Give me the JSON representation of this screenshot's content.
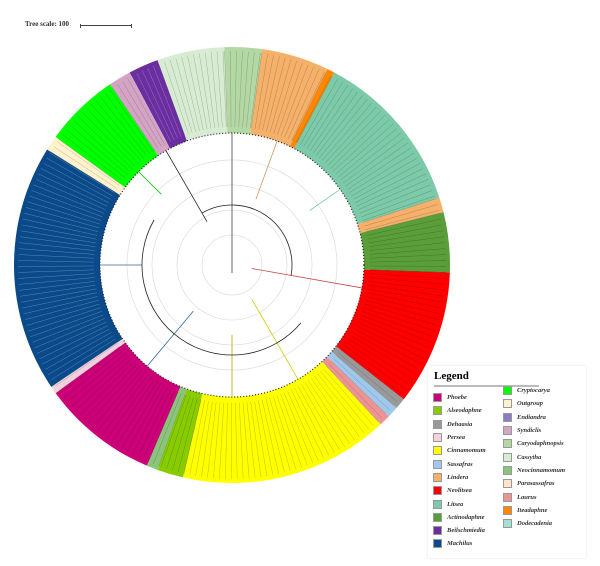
{
  "tree_scale": {
    "label": "Tree scale: 100"
  },
  "legend": {
    "title": "Legend",
    "items": [
      {
        "name": "Phoebe",
        "color": "#cc0077"
      },
      {
        "name": "Alseodaphne",
        "color": "#88cc00"
      },
      {
        "name": "Dehaasia",
        "color": "#999999"
      },
      {
        "name": "Persea",
        "color": "#f2d0dc"
      },
      {
        "name": "Cinnamomum",
        "color": "#ffff00"
      },
      {
        "name": "Sassafras",
        "color": "#a0c8ec"
      },
      {
        "name": "Lindera",
        "color": "#f5b06a"
      },
      {
        "name": "Neolitsea",
        "color": "#ff0000"
      },
      {
        "name": "Litsea",
        "color": "#7ccaa8"
      },
      {
        "name": "Actinodaphne",
        "color": "#5a9e3a"
      },
      {
        "name": "Beilschmiedia",
        "color": "#6a2ea0"
      },
      {
        "name": "Machilus",
        "color": "#0a4a8a"
      },
      {
        "name": "Cryptocarya",
        "color": "#00ff00"
      },
      {
        "name": "Outgroup",
        "color": "#fff2cc"
      },
      {
        "name": "Endiandra",
        "color": "#8c7cc8"
      },
      {
        "name": "Syndiclis",
        "color": "#d4a4c4"
      },
      {
        "name": "Caryodaphnopsis",
        "color": "#b4d8a4"
      },
      {
        "name": "Cassytha",
        "color": "#d8ecd4"
      },
      {
        "name": "Neocinnamomum",
        "color": "#8cc47c"
      },
      {
        "name": "Parasassafras",
        "color": "#fde4cc"
      },
      {
        "name": "Laurus",
        "color": "#ec9494"
      },
      {
        "name": "Iteadaphne",
        "color": "#ff8800"
      },
      {
        "name": "Dodecadenia",
        "color": "#a4e0d4"
      }
    ]
  }
}
